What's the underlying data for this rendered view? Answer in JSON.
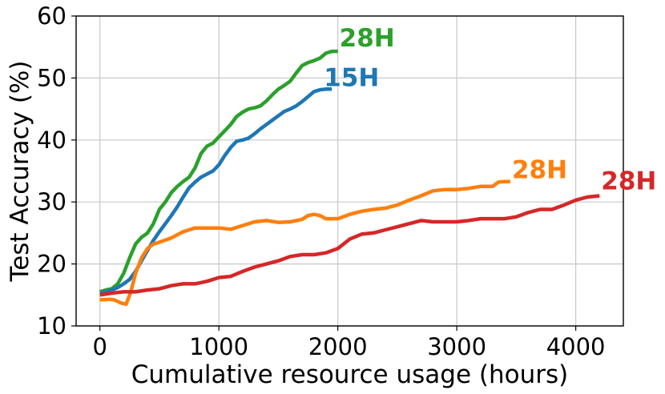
{
  "chart_data": {
    "type": "line",
    "xlabel": "Cumulative resource usage (hours)",
    "ylabel": "Test Accuracy (%)",
    "xlim": [
      -200,
      4400
    ],
    "ylim": [
      10,
      60
    ],
    "xticks": [
      0,
      1000,
      2000,
      3000,
      4000
    ],
    "yticks": [
      10,
      20,
      30,
      40,
      50,
      60
    ],
    "xtick_labels": [
      "0",
      "1000",
      "2000",
      "3000",
      "4000"
    ],
    "ytick_labels": [
      "10",
      "20",
      "30",
      "40",
      "50",
      "60"
    ],
    "grid": true,
    "series": [
      {
        "name": "28H",
        "color": "#2ca02c",
        "x": [
          0,
          50,
          100,
          150,
          200,
          250,
          300,
          350,
          400,
          450,
          500,
          550,
          600,
          650,
          700,
          750,
          800,
          850,
          900,
          950,
          1000,
          1050,
          1100,
          1150,
          1200,
          1250,
          1300,
          1350,
          1400,
          1450,
          1500,
          1550,
          1600,
          1650,
          1700,
          1750,
          1800,
          1850,
          1900,
          1950,
          2000
        ],
        "y": [
          15.5,
          15.8,
          16.0,
          16.8,
          18.5,
          21.0,
          23.2,
          24.3,
          25.0,
          26.5,
          28.8,
          30.0,
          31.5,
          32.5,
          33.3,
          34.0,
          35.5,
          37.8,
          39.0,
          39.5,
          40.5,
          41.5,
          42.5,
          43.8,
          44.5,
          45.0,
          45.2,
          45.5,
          46.3,
          47.3,
          48.2,
          48.8,
          49.5,
          50.8,
          52.0,
          52.5,
          52.8,
          53.2,
          54.0,
          54.3,
          54.3
        ]
      },
      {
        "name": "15H",
        "color": "#1f77b4",
        "x": [
          0,
          50,
          100,
          150,
          200,
          250,
          300,
          350,
          400,
          450,
          500,
          550,
          600,
          650,
          700,
          750,
          800,
          850,
          900,
          950,
          1000,
          1050,
          1100,
          1150,
          1200,
          1250,
          1300,
          1350,
          1400,
          1450,
          1500,
          1550,
          1600,
          1650,
          1700,
          1750,
          1800,
          1850,
          1900,
          1950
        ],
        "y": [
          15.3,
          15.5,
          15.8,
          16.2,
          16.8,
          17.5,
          18.8,
          20.5,
          22.2,
          23.8,
          25.2,
          26.5,
          27.8,
          29.2,
          30.8,
          32.3,
          33.2,
          34.0,
          34.5,
          35.0,
          36.0,
          37.5,
          38.8,
          39.8,
          40.0,
          40.3,
          41.0,
          41.8,
          42.5,
          43.2,
          43.9,
          44.6,
          45.0,
          45.5,
          46.2,
          47.0,
          47.8,
          48.1,
          48.2,
          48.2
        ]
      },
      {
        "name": "28H",
        "color": "#ff7f0e",
        "x": [
          0,
          80,
          120,
          180,
          220,
          260,
          300,
          350,
          400,
          450,
          500,
          600,
          700,
          800,
          900,
          1000,
          1100,
          1200,
          1300,
          1400,
          1500,
          1600,
          1700,
          1750,
          1800,
          1850,
          1900,
          2000,
          2100,
          2200,
          2300,
          2400,
          2500,
          2600,
          2700,
          2800,
          2900,
          3000,
          3100,
          3200,
          3300,
          3350,
          3400,
          3450
        ],
        "y": [
          14.2,
          14.3,
          14.2,
          13.7,
          13.5,
          15.5,
          18.5,
          21.0,
          22.5,
          23.2,
          23.5,
          24.2,
          25.2,
          25.8,
          25.8,
          25.8,
          25.6,
          26.2,
          26.8,
          27.0,
          26.7,
          26.8,
          27.2,
          27.8,
          28.0,
          27.8,
          27.3,
          27.3,
          28.0,
          28.5,
          28.8,
          29.0,
          29.5,
          30.3,
          31.0,
          31.8,
          32.0,
          32.0,
          32.2,
          32.5,
          32.5,
          33.2,
          33.3,
          33.3
        ]
      },
      {
        "name": "28H",
        "color": "#d62728",
        "x": [
          0,
          100,
          200,
          300,
          400,
          500,
          600,
          700,
          800,
          900,
          1000,
          1100,
          1200,
          1300,
          1400,
          1500,
          1600,
          1700,
          1800,
          1900,
          2000,
          2100,
          2200,
          2300,
          2400,
          2500,
          2600,
          2700,
          2800,
          2900,
          3000,
          3100,
          3200,
          3300,
          3400,
          3500,
          3600,
          3700,
          3800,
          3900,
          4000,
          4100,
          4200
        ],
        "y": [
          15.0,
          15.3,
          15.5,
          15.5,
          15.8,
          16.0,
          16.5,
          16.8,
          16.8,
          17.2,
          17.8,
          18.0,
          18.8,
          19.5,
          20.0,
          20.5,
          21.2,
          21.5,
          21.5,
          21.8,
          22.5,
          24.0,
          24.8,
          25.0,
          25.5,
          26.0,
          26.5,
          27.0,
          26.8,
          26.8,
          26.8,
          27.0,
          27.3,
          27.3,
          27.3,
          27.6,
          28.3,
          28.8,
          28.8,
          29.5,
          30.3,
          30.8,
          31.0
        ]
      }
    ]
  }
}
